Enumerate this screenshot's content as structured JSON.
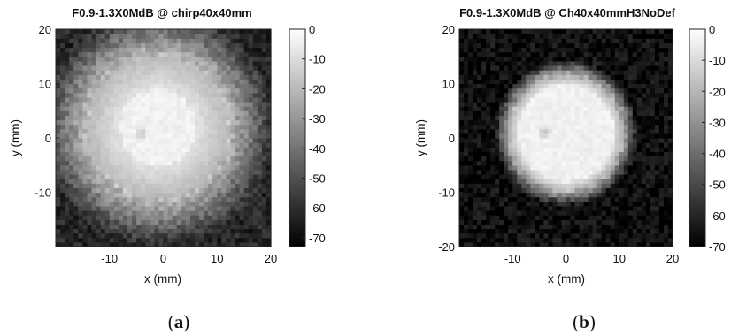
{
  "chart_data": [
    {
      "type": "heatmap",
      "title": "F0.9-1.3X0MdB @ chirp40x40mm",
      "xlabel": "x (mm)",
      "ylabel": "y (mm)",
      "xlim": [
        -20,
        20
      ],
      "ylim": [
        -20,
        20
      ],
      "x_ticks": [
        -10,
        0,
        10,
        20
      ],
      "y_ticks": [
        -10,
        0,
        10,
        20
      ],
      "colorbar": {
        "ticks": [
          0,
          -10,
          -20,
          -30,
          -40,
          -50,
          -60,
          -70
        ],
        "range": [
          -73,
          0
        ],
        "colormap": "gray"
      },
      "field": {
        "center": [
          -1,
          2
        ],
        "core_radius": 7,
        "bright_radius": 13,
        "spread": 9,
        "floor": -62,
        "dark_spot": [
          -4,
          1
        ]
      },
      "caption": "a"
    },
    {
      "type": "heatmap",
      "title": "F0.9-1.3X0MdB @ Ch40x40mmH3NoDef",
      "xlabel": "x (mm)",
      "ylabel": "y (mm)",
      "xlim": [
        -20,
        20
      ],
      "ylim": [
        -20,
        20
      ],
      "x_ticks": [
        -10,
        0,
        10,
        20
      ],
      "y_ticks": [
        -20,
        -10,
        0,
        10,
        20
      ],
      "colorbar": {
        "ticks": [
          0,
          -10,
          -20,
          -30,
          -40,
          -50,
          -60,
          -70
        ],
        "range": [
          -70,
          0
        ],
        "colormap": "gray"
      },
      "field": {
        "center": [
          0,
          1
        ],
        "core_radius": 9,
        "bright_radius": 10.5,
        "spread": 3,
        "floor": -66,
        "dark_spot": [
          -4,
          1
        ]
      },
      "caption": "b"
    }
  ]
}
